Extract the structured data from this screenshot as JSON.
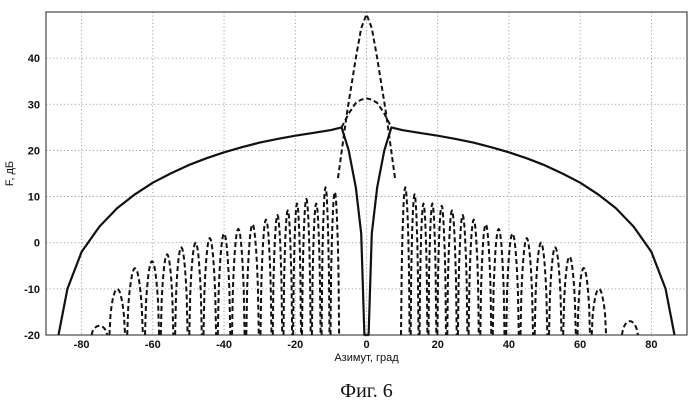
{
  "chart_data": {
    "type": "line",
    "title": "",
    "xlabel": "Азимут, град",
    "ylabel": "F, дБ",
    "xlim": [
      -90,
      90
    ],
    "ylim": [
      -20,
      50
    ],
    "x_ticks": [
      -80,
      -60,
      -40,
      -20,
      0,
      20,
      40,
      60,
      80
    ],
    "y_ticks": [
      -20,
      -10,
      0,
      10,
      20,
      30,
      40
    ],
    "grid": true,
    "legend": "none",
    "series": [
      {
        "style": "solid",
        "points": [
          [
            -86.5,
            -20
          ],
          [
            -84,
            -10
          ],
          [
            -80,
            -2
          ],
          [
            -75,
            3.5
          ],
          [
            -70,
            7.5
          ],
          [
            -65,
            10.5
          ],
          [
            -60,
            13
          ],
          [
            -55,
            15
          ],
          [
            -50,
            16.8
          ],
          [
            -45,
            18.3
          ],
          [
            -40,
            19.6
          ],
          [
            -35,
            20.7
          ],
          [
            -30,
            21.7
          ],
          [
            -25,
            22.5
          ],
          [
            -20,
            23.2
          ],
          [
            -15,
            23.8
          ],
          [
            -10,
            24.4
          ],
          [
            -7,
            25
          ],
          [
            -5,
            20
          ],
          [
            -3,
            12
          ],
          [
            -1.5,
            2
          ],
          [
            -0.6,
            -20
          ],
          [
            0.6,
            -20
          ],
          [
            1.5,
            2
          ],
          [
            3,
            12
          ],
          [
            5,
            20
          ],
          [
            7,
            25
          ],
          [
            10,
            24.4
          ],
          [
            15,
            23.8
          ],
          [
            20,
            23.2
          ],
          [
            25,
            22.5
          ],
          [
            30,
            21.7
          ],
          [
            35,
            20.7
          ],
          [
            40,
            19.6
          ],
          [
            45,
            18.3
          ],
          [
            50,
            16.8
          ],
          [
            55,
            15
          ],
          [
            60,
            13
          ],
          [
            65,
            10.5
          ],
          [
            70,
            7.5
          ],
          [
            75,
            3.5
          ],
          [
            80,
            -2
          ],
          [
            84,
            -10
          ],
          [
            86.5,
            -20
          ]
        ]
      },
      {
        "style": "dashed",
        "points": [
          [
            -8,
            14
          ],
          [
            -5.5,
            28
          ],
          [
            -3,
            40
          ],
          [
            -1.5,
            46.5
          ],
          [
            0,
            49.5
          ],
          [
            1.5,
            46.5
          ],
          [
            3,
            40
          ],
          [
            5.5,
            28
          ],
          [
            8,
            14
          ]
        ]
      },
      {
        "style": "dashed",
        "points": [
          [
            -7,
            25
          ],
          [
            -5,
            28
          ],
          [
            -3,
            30.3
          ],
          [
            -1.5,
            31
          ],
          [
            0,
            31.3
          ],
          [
            1.5,
            31
          ],
          [
            3,
            30.3
          ],
          [
            5,
            28
          ],
          [
            7,
            25
          ]
        ]
      }
    ],
    "sidelobes": {
      "style": "dashed",
      "floor": -20,
      "peaks": [
        [
          -75,
          -18
        ],
        [
          -70,
          -10
        ],
        [
          -65,
          -5.5
        ],
        [
          -60,
          -4
        ],
        [
          -56,
          -2.5
        ],
        [
          -52,
          -1
        ],
        [
          -48,
          0
        ],
        [
          -44,
          1
        ],
        [
          -40,
          2
        ],
        [
          -36,
          3
        ],
        [
          -32,
          4
        ],
        [
          -28,
          5
        ],
        [
          -25,
          6
        ],
        [
          -22,
          7
        ],
        [
          -19.5,
          8.5
        ],
        [
          -17,
          9.5
        ],
        [
          -14,
          8.5
        ],
        [
          -11.5,
          12
        ],
        [
          -9,
          11
        ],
        [
          11,
          12
        ],
        [
          13.5,
          10.5
        ],
        [
          16,
          8.5
        ],
        [
          18.5,
          8.5
        ],
        [
          21,
          8
        ],
        [
          24,
          7
        ],
        [
          27,
          6
        ],
        [
          30,
          5
        ],
        [
          33.5,
          4
        ],
        [
          37,
          3
        ],
        [
          41,
          2
        ],
        [
          45,
          1
        ],
        [
          49,
          0
        ],
        [
          53,
          -1
        ],
        [
          57,
          -3
        ],
        [
          61,
          -5.5
        ],
        [
          65,
          -10
        ],
        [
          74,
          -17
        ]
      ]
    }
  },
  "caption": "Фиг. 6"
}
